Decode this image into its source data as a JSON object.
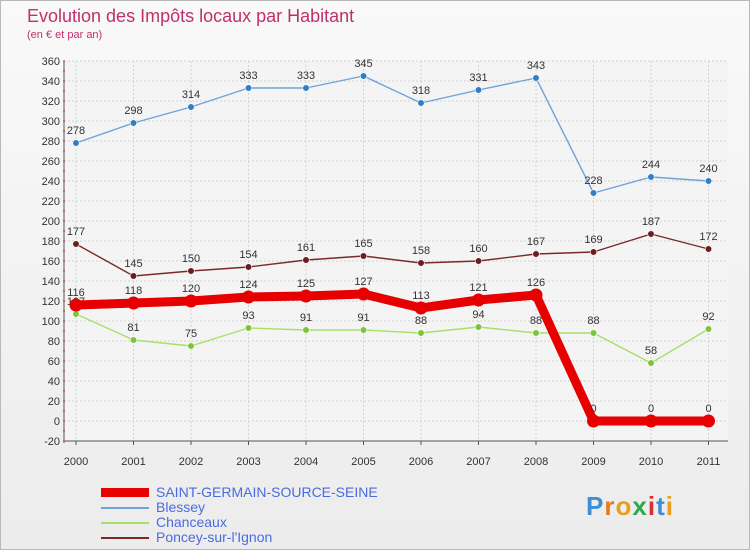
{
  "title": "Evolution des Impôts locaux par Habitant",
  "subtitle": "(en € et par an)",
  "logo_text": "Proxiti",
  "chart_data": {
    "type": "line",
    "title": "Evolution des Impôts locaux par Habitant",
    "subtitle": "(en € et par an)",
    "categories": [
      "2000",
      "2001",
      "2002",
      "2003",
      "2004",
      "2005",
      "2006",
      "2007",
      "2008",
      "2009",
      "2010",
      "2011"
    ],
    "ylim": [
      -20,
      360
    ],
    "ytick_step": 20,
    "yticks": [
      "-20",
      "0",
      "20",
      "40",
      "60",
      "80",
      "100",
      "120",
      "140",
      "160",
      "180",
      "200",
      "220",
      "240",
      "260",
      "280",
      "300",
      "320",
      "340",
      "360"
    ],
    "grid": true,
    "legend_position": "bottom-left",
    "series": [
      {
        "name": "SAINT-GERMAIN-SOURCE-SEINE",
        "color": "#e60000",
        "values": [
          116,
          118,
          120,
          124,
          125,
          127,
          113,
          121,
          126,
          0,
          0,
          0
        ]
      },
      {
        "name": "Blessey",
        "color": "#6fa3d8",
        "marker": "#2f7fc6",
        "values": [
          278,
          298,
          314,
          333,
          333,
          345,
          318,
          331,
          343,
          228,
          244,
          240
        ]
      },
      {
        "name": "Chanceaux",
        "color": "#a6e06a",
        "marker": "#7dc43c",
        "values": [
          107,
          81,
          75,
          93,
          91,
          91,
          88,
          94,
          88,
          88,
          58,
          92
        ]
      },
      {
        "name": "Poncey-sur-l'Ignon",
        "color": "#7a2a2a",
        "marker": "#6b1e1e",
        "values": [
          177,
          145,
          150,
          154,
          161,
          165,
          158,
          160,
          167,
          169,
          187,
          172
        ]
      }
    ]
  }
}
